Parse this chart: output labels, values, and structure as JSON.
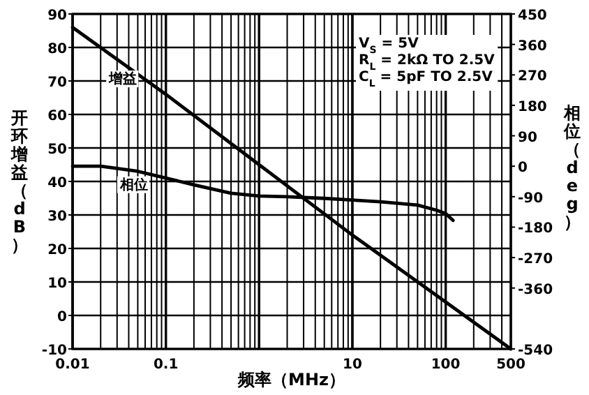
{
  "chart_data": {
    "type": "line",
    "xlabel": "频率（MHz）",
    "ylabel": "开环增益（dB）",
    "y2label": "相位（deg）",
    "log": "x",
    "grid": true,
    "legend": false,
    "marker": "none",
    "line_style": "solid",
    "xlim": [
      0.01,
      500
    ],
    "xticks": [
      0.01,
      0.1,
      {
        "value": 1,
        "label": null
      },
      10,
      100,
      500
    ],
    "ylim": [
      -10,
      90
    ],
    "yticks": [
      -10,
      0,
      10,
      20,
      30,
      40,
      50,
      60,
      70,
      80,
      90
    ],
    "y2lim": [
      -540,
      450
    ],
    "y2ticks": [
      -540,
      -360,
      -270,
      -180,
      -90,
      0,
      90,
      180,
      270,
      360,
      450
    ],
    "series": [
      {
        "name": "增益",
        "color": "#000000",
        "x": [
          0.01,
          0.1,
          1,
          10,
          100,
          500
        ],
        "values": [
          86,
          66,
          45,
          24,
          4,
          -10
        ]
      },
      {
        "name": "相位",
        "color": "#000000",
        "axis": "y2",
        "x": [
          0.01,
          0.02,
          0.05,
          0.1,
          0.2,
          0.5,
          1,
          2,
          5,
          10,
          20,
          50,
          80,
          100,
          120
        ],
        "values": [
          0,
          0,
          -15,
          -35,
          -55,
          -80,
          -88,
          -90,
          -95,
          -100,
          -105,
          -115,
          -130,
          -140,
          -160
        ]
      }
    ],
    "annotations": [
      "V$_{S}$ = 5V",
      "R$_{L}$ = 2kΩ TO 2.5V",
      "C$_{L}$ = 5pF TO 2.5V"
    ]
  }
}
